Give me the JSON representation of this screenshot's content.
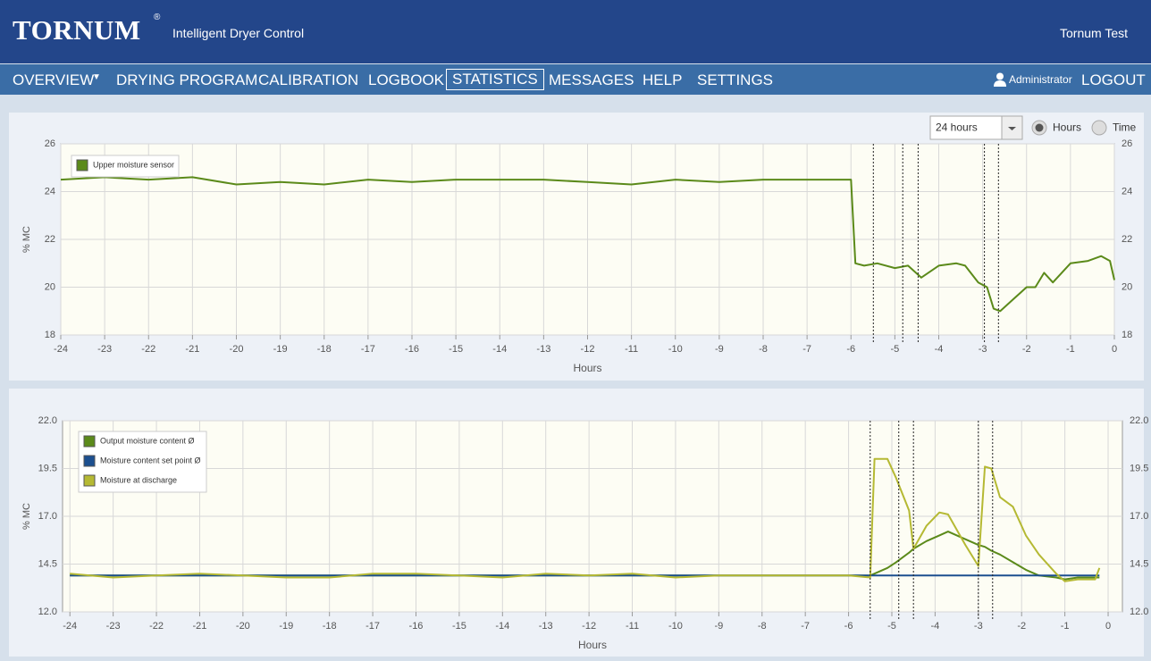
{
  "header": {
    "logo": "TORNUM",
    "logo_mark": "®",
    "subtitle": "Intelligent Dryer Control",
    "site": "Tornum Test"
  },
  "nav": {
    "items": [
      "OVERVIEW",
      "DRYING PROGRAM",
      "CALIBRATION",
      "LOGBOOK",
      "STATISTICS",
      "MESSAGES",
      "HELP",
      "SETTINGS"
    ],
    "active": "STATISTICS",
    "user": "Administrator",
    "logout": "LOGOUT"
  },
  "controls": {
    "range": "24 hours",
    "modes": [
      "Hours",
      "Time"
    ],
    "selected_mode": "Hours"
  },
  "chart_data": [
    {
      "type": "line",
      "y_label": "% MC",
      "x_label": "Hours",
      "x": [
        -24,
        -23,
        -22,
        -21,
        -20,
        -19,
        -18,
        -17,
        -16,
        -15,
        -14,
        -13,
        -12,
        -11,
        -10,
        -9,
        -8,
        -7,
        -6,
        -5.9,
        -5.7,
        -5.4,
        -5.0,
        -4.7,
        -4.4,
        -4.0,
        -3.6,
        -3.4,
        -3.1,
        -2.9,
        -2.75,
        -2.6,
        -2.3,
        -2.0,
        -1.8,
        -1.6,
        -1.4,
        -1.0,
        -0.6,
        -0.3,
        -0.1,
        0
      ],
      "series": [
        {
          "name": "Upper moisture sensor",
          "color": "#5b8a1a",
          "values": [
            24.5,
            24.6,
            24.5,
            24.6,
            24.3,
            24.4,
            24.3,
            24.5,
            24.4,
            24.5,
            24.5,
            24.5,
            24.4,
            24.3,
            24.5,
            24.4,
            24.5,
            24.5,
            24.5,
            21.0,
            20.9,
            21.0,
            20.8,
            20.9,
            20.4,
            20.9,
            21.0,
            20.9,
            20.2,
            20.0,
            19.1,
            19.0,
            19.5,
            20.0,
            20.0,
            20.6,
            20.2,
            21.0,
            21.1,
            21.3,
            21.1,
            20.3
          ]
        }
      ],
      "xlim": [
        -24,
        0
      ],
      "xticks": [
        -24,
        -23,
        -22,
        -21,
        -20,
        -19,
        -18,
        -17,
        -16,
        -15,
        -14,
        -13,
        -12,
        -11,
        -10,
        -9,
        -8,
        -7,
        -6,
        -5,
        -4,
        -3,
        -2,
        -1,
        0
      ],
      "ylim": [
        18,
        26
      ],
      "yticks": [
        18,
        20,
        22,
        24,
        26
      ],
      "grid": true,
      "markers": [
        -5.49,
        -4.82,
        -4.47,
        -2.96,
        -2.64
      ]
    },
    {
      "type": "line",
      "y_label": "% MC",
      "x_label": "Hours",
      "x": [
        -24,
        -23,
        -22,
        -21,
        -20,
        -19,
        -18,
        -17,
        -16,
        -15,
        -14,
        -13,
        -12,
        -11,
        -10,
        -9,
        -8,
        -7,
        -6,
        -5.5,
        -5.4,
        -5.1,
        -4.9,
        -4.6,
        -4.5,
        -4.2,
        -3.9,
        -3.7,
        -3.3,
        -3.0,
        -2.85,
        -2.7,
        -2.5,
        -2.2,
        -1.9,
        -1.6,
        -1.2,
        -1.0,
        -0.7,
        -0.3,
        -0.2
      ],
      "series": [
        {
          "name": "Output moisture content Ø",
          "color": "#5b8a1a",
          "values": [
            13.9,
            13.9,
            13.9,
            13.9,
            13.9,
            13.9,
            13.9,
            13.9,
            13.9,
            13.9,
            13.9,
            13.9,
            13.9,
            13.9,
            13.9,
            13.9,
            13.9,
            13.9,
            13.9,
            13.9,
            14.0,
            14.3,
            14.6,
            15.1,
            15.3,
            15.7,
            16.0,
            16.2,
            15.8,
            15.5,
            15.4,
            15.2,
            15.0,
            14.6,
            14.2,
            13.9,
            13.8,
            13.7,
            13.8,
            13.8,
            13.8
          ]
        },
        {
          "name": "Moisture content set point Ø",
          "color": "#1c4f8f",
          "values": [
            13.9,
            13.9,
            13.9,
            13.9,
            13.9,
            13.9,
            13.9,
            13.9,
            13.9,
            13.9,
            13.9,
            13.9,
            13.9,
            13.9,
            13.9,
            13.9,
            13.9,
            13.9,
            13.9,
            13.9,
            13.9,
            13.9,
            13.9,
            13.9,
            13.9,
            13.9,
            13.9,
            13.9,
            13.9,
            13.9,
            13.9,
            13.9,
            13.9,
            13.9,
            13.9,
            13.9,
            13.9,
            13.9,
            13.9,
            13.9,
            13.9
          ]
        },
        {
          "name": "Moisture at discharge",
          "color": "#b5b933",
          "values": [
            14.0,
            13.8,
            13.9,
            14.0,
            13.9,
            13.8,
            13.8,
            14.0,
            14.0,
            13.9,
            13.8,
            14.0,
            13.9,
            14.0,
            13.8,
            13.9,
            13.9,
            13.9,
            13.9,
            13.8,
            20.0,
            20.0,
            19.0,
            17.3,
            15.3,
            16.5,
            17.2,
            17.1,
            15.5,
            14.4,
            19.6,
            19.5,
            18.0,
            17.5,
            16.0,
            15.0,
            14.0,
            13.6,
            13.7,
            13.7,
            14.3
          ]
        }
      ],
      "xlim": [
        -24.17,
        0.33
      ],
      "xticks": [
        -24,
        -23,
        -22,
        -21,
        -20,
        -19,
        -18,
        -17,
        -16,
        -15,
        -14,
        -13,
        -12,
        -11,
        -10,
        -9,
        -8,
        -7,
        -6,
        -5,
        -4,
        -3,
        -2,
        -1,
        0
      ],
      "ylim": [
        12,
        22
      ],
      "yticks": [
        {
          "value": 12,
          "label": "12.0"
        },
        {
          "value": 14.5,
          "label": "14.5"
        },
        {
          "value": 17,
          "label": "17.0"
        },
        {
          "value": 19.5,
          "label": "19.5"
        },
        {
          "value": 22,
          "label": "22.0"
        }
      ],
      "grid": true,
      "markers": [
        -5.5,
        -4.84,
        -4.5,
        -3.0,
        -2.67
      ]
    }
  ]
}
